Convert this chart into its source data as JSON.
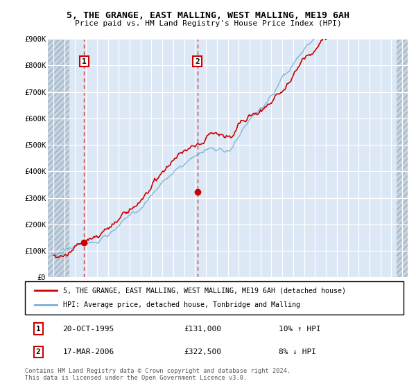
{
  "title": "5, THE GRANGE, EAST MALLING, WEST MALLING, ME19 6AH",
  "subtitle": "Price paid vs. HM Land Registry's House Price Index (HPI)",
  "ylim": [
    0,
    900000
  ],
  "yticks": [
    0,
    100000,
    200000,
    300000,
    400000,
    500000,
    600000,
    700000,
    800000,
    900000
  ],
  "ytick_labels": [
    "£0",
    "£100K",
    "£200K",
    "£300K",
    "£400K",
    "£500K",
    "£600K",
    "£700K",
    "£800K",
    "£900K"
  ],
  "xlim_start": 1992.5,
  "xlim_end": 2025.5,
  "hatch_left_end": 1994.5,
  "hatch_right_start": 2024.5,
  "sale1_x": 1995.83,
  "sale1_y": 131000,
  "sale2_x": 2006.21,
  "sale2_y": 322500,
  "sale1_label": "1",
  "sale2_label": "2",
  "line_color_red": "#cc0000",
  "line_color_blue": "#7ab0d4",
  "legend_label_red": "5, THE GRANGE, EAST MALLING, WEST MALLING, ME19 6AH (detached house)",
  "legend_label_blue": "HPI: Average price, detached house, Tonbridge and Malling",
  "annotation1_date": "20-OCT-1995",
  "annotation1_price": "£131,000",
  "annotation1_hpi": "10% ↑ HPI",
  "annotation2_date": "17-MAR-2006",
  "annotation2_price": "£322,500",
  "annotation2_hpi": "8% ↓ HPI",
  "footer": "Contains HM Land Registry data © Crown copyright and database right 2024.\nThis data is licensed under the Open Government Licence v3.0.",
  "plot_bg_color": "#dce8f5",
  "grid_color": "#ffffff",
  "hatch_color": "#c5d3e0"
}
